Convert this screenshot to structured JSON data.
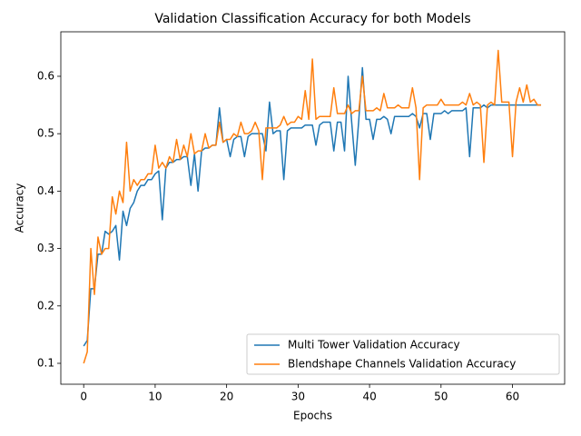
{
  "chart_data": {
    "type": "line",
    "title": "Validation Classification Accuracy for both Models",
    "x_label": "Epochs",
    "y_label": "Accuracy",
    "x": [
      0,
      0.5,
      1,
      1.5,
      2,
      2.5,
      3,
      3.5,
      4,
      4.5,
      5,
      5.5,
      6,
      6.5,
      7,
      7.5,
      8,
      8.5,
      9,
      9.5,
      10,
      10.5,
      11,
      11.5,
      12,
      12.5,
      13,
      13.5,
      14,
      14.5,
      15,
      15.5,
      16,
      16.5,
      17,
      17.5,
      18,
      18.5,
      19,
      19.5,
      20,
      20.5,
      21,
      21.5,
      22,
      22.5,
      23,
      23.5,
      24,
      24.5,
      25,
      25.5,
      26,
      26.5,
      27,
      27.5,
      28,
      28.5,
      29,
      29.5,
      30,
      30.5,
      31,
      31.5,
      32,
      32.5,
      33,
      33.5,
      34,
      34.5,
      35,
      35.5,
      36,
      36.5,
      37,
      37.5,
      38,
      38.5,
      39,
      39.5,
      40,
      40.5,
      41,
      41.5,
      42,
      42.5,
      43,
      43.5,
      44,
      44.5,
      45,
      45.5,
      46,
      46.5,
      47,
      47.5,
      48,
      48.5,
      49,
      49.5,
      50,
      50.5,
      51,
      51.5,
      52,
      52.5,
      53,
      53.5,
      54,
      54.5,
      55,
      55.5,
      56,
      56.5,
      57,
      57.5,
      58,
      58.5,
      59,
      59.5,
      60,
      60.5,
      61,
      61.5,
      62,
      62.5,
      63,
      63.5,
      64
    ],
    "series": [
      {
        "name": "Multi Tower Validation Accuracy",
        "color": "#1f77b4",
        "values": [
          0.13,
          0.14,
          0.23,
          0.23,
          0.29,
          0.29,
          0.33,
          0.325,
          0.33,
          0.34,
          0.28,
          0.365,
          0.34,
          0.37,
          0.38,
          0.4,
          0.41,
          0.41,
          0.42,
          0.42,
          0.43,
          0.435,
          0.35,
          0.44,
          0.45,
          0.45,
          0.455,
          0.455,
          0.46,
          0.46,
          0.41,
          0.465,
          0.4,
          0.47,
          0.475,
          0.475,
          0.48,
          0.48,
          0.545,
          0.485,
          0.49,
          0.46,
          0.49,
          0.495,
          0.495,
          0.46,
          0.495,
          0.5,
          0.5,
          0.5,
          0.5,
          0.47,
          0.555,
          0.5,
          0.505,
          0.505,
          0.42,
          0.505,
          0.51,
          0.51,
          0.51,
          0.51,
          0.515,
          0.515,
          0.515,
          0.48,
          0.515,
          0.52,
          0.52,
          0.52,
          0.47,
          0.52,
          0.52,
          0.47,
          0.6,
          0.52,
          0.445,
          0.525,
          0.615,
          0.525,
          0.525,
          0.49,
          0.525,
          0.525,
          0.53,
          0.525,
          0.5,
          0.53,
          0.53,
          0.53,
          0.53,
          0.53,
          0.535,
          0.53,
          0.51,
          0.535,
          0.535,
          0.49,
          0.535,
          0.535,
          0.535,
          0.54,
          0.535,
          0.54,
          0.54,
          0.54,
          0.54,
          0.545,
          0.46,
          0.545,
          0.545,
          0.545,
          0.55,
          0.545,
          0.55,
          0.55,
          0.55,
          0.55,
          0.55,
          0.55,
          0.55,
          0.55,
          0.55,
          0.55,
          0.55,
          0.55,
          0.55,
          0.55,
          0.55
        ]
      },
      {
        "name": "Blendshape Channels Validation Accuracy",
        "color": "#ff7f0e",
        "values": [
          0.1,
          0.12,
          0.3,
          0.22,
          0.32,
          0.29,
          0.3,
          0.3,
          0.39,
          0.36,
          0.4,
          0.38,
          0.485,
          0.4,
          0.42,
          0.41,
          0.42,
          0.42,
          0.43,
          0.43,
          0.48,
          0.44,
          0.45,
          0.44,
          0.46,
          0.45,
          0.49,
          0.455,
          0.48,
          0.46,
          0.5,
          0.465,
          0.47,
          0.47,
          0.5,
          0.475,
          0.48,
          0.48,
          0.52,
          0.485,
          0.49,
          0.49,
          0.5,
          0.495,
          0.52,
          0.5,
          0.5,
          0.505,
          0.52,
          0.505,
          0.42,
          0.51,
          0.51,
          0.51,
          0.51,
          0.515,
          0.53,
          0.515,
          0.52,
          0.52,
          0.53,
          0.525,
          0.575,
          0.525,
          0.63,
          0.525,
          0.53,
          0.53,
          0.53,
          0.53,
          0.58,
          0.535,
          0.535,
          0.535,
          0.55,
          0.535,
          0.54,
          0.54,
          0.6,
          0.54,
          0.54,
          0.54,
          0.545,
          0.54,
          0.57,
          0.545,
          0.545,
          0.545,
          0.55,
          0.545,
          0.545,
          0.545,
          0.58,
          0.545,
          0.42,
          0.545,
          0.55,
          0.55,
          0.55,
          0.55,
          0.56,
          0.55,
          0.55,
          0.55,
          0.55,
          0.55,
          0.555,
          0.55,
          0.57,
          0.55,
          0.555,
          0.55,
          0.45,
          0.55,
          0.555,
          0.55,
          0.645,
          0.555,
          0.555,
          0.555,
          0.46,
          0.555,
          0.58,
          0.555,
          0.585,
          0.555,
          0.56,
          0.55,
          0.55
        ]
      }
    ],
    "xlim": [
      -3.2,
      67.3
    ],
    "ylim": [
      0.0636,
      0.6775
    ],
    "xticks": [
      0,
      10,
      20,
      30,
      40,
      50,
      60
    ],
    "yticks": [
      0.1,
      0.2,
      0.3,
      0.4,
      0.5,
      0.6
    ],
    "legend": "lower right"
  }
}
